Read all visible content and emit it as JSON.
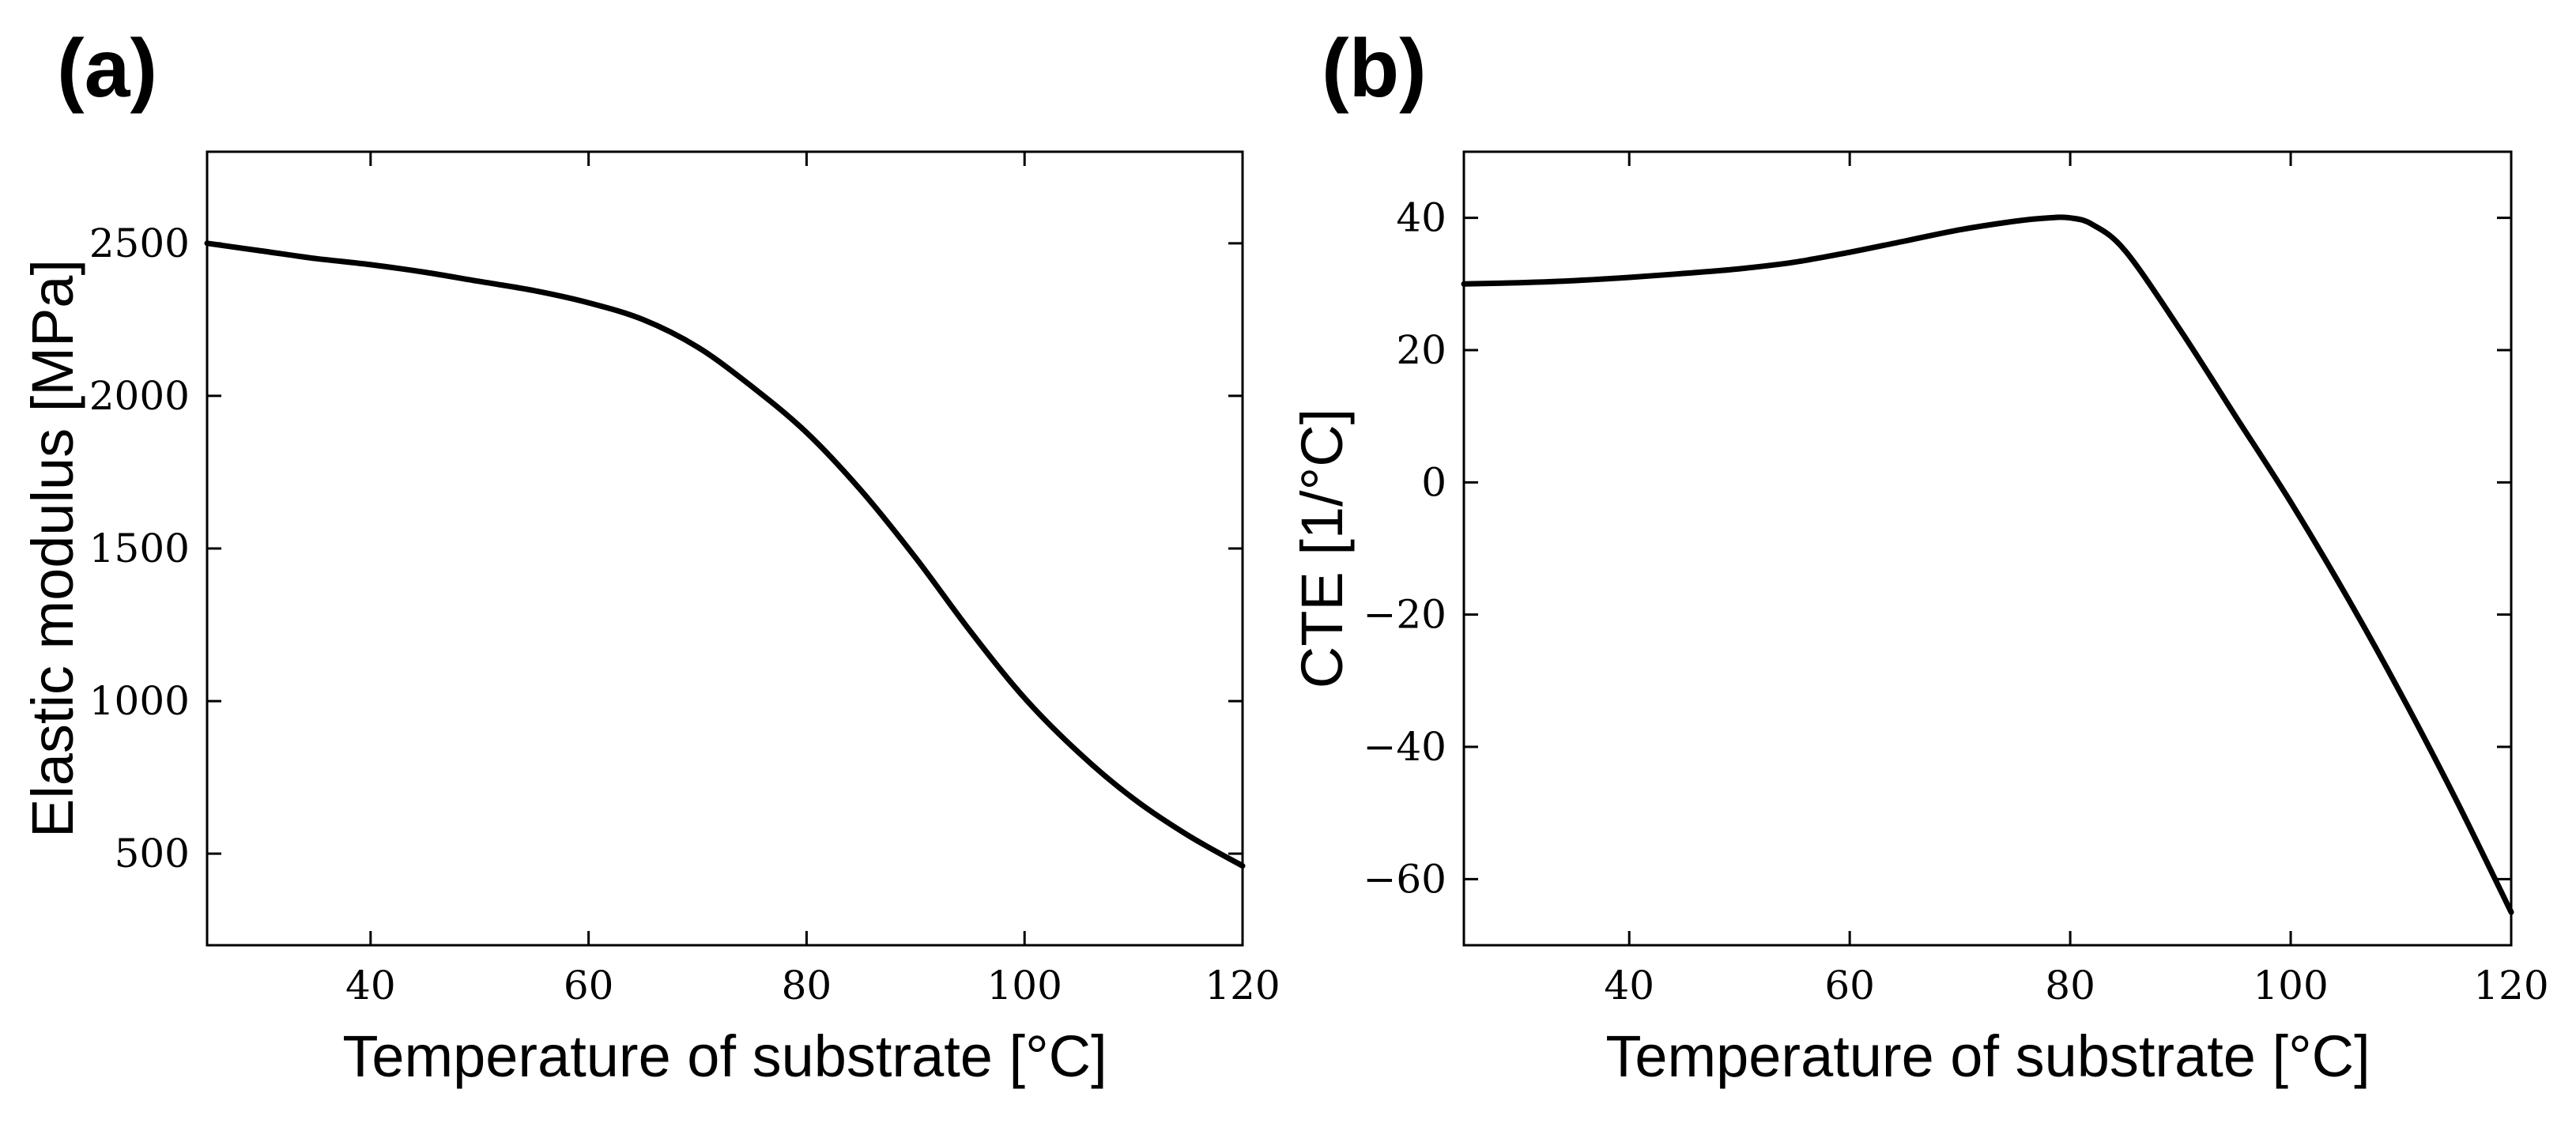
{
  "figure": {
    "panels": [
      {
        "label": "(a)"
      },
      {
        "label": "(b)"
      }
    ]
  },
  "chart_data": [
    {
      "type": "line",
      "panel": "(a)",
      "xlabel": "Temperature of substrate [°C]",
      "ylabel": "Elastic modulus [MPa]",
      "xlim": [
        25,
        120
      ],
      "ylim": [
        200,
        2800
      ],
      "xticks": [
        40,
        60,
        80,
        100,
        120
      ],
      "yticks": [
        500,
        1000,
        1500,
        2000,
        2500
      ],
      "grid": false,
      "series": [
        {
          "name": "Elastic modulus",
          "color": "#000000",
          "x": [
            25,
            30,
            35,
            40,
            45,
            50,
            55,
            60,
            65,
            70,
            75,
            80,
            85,
            90,
            95,
            100,
            105,
            110,
            115,
            120
          ],
          "y": [
            2500,
            2475,
            2450,
            2430,
            2405,
            2375,
            2345,
            2305,
            2250,
            2160,
            2030,
            1880,
            1690,
            1470,
            1230,
            1010,
            830,
            680,
            560,
            460
          ]
        }
      ]
    },
    {
      "type": "line",
      "panel": "(b)",
      "xlabel": "Temperature of substrate [°C]",
      "ylabel": "CTE [1/°C]",
      "xlim": [
        25,
        120
      ],
      "ylim": [
        -70,
        50
      ],
      "xticks": [
        40,
        60,
        80,
        100,
        120
      ],
      "yticks": [
        -60,
        -40,
        -20,
        0,
        20,
        40
      ],
      "ytick_labels": [
        "−60",
        "−40",
        "−20",
        "0",
        "20",
        "40"
      ],
      "grid": false,
      "series": [
        {
          "name": "CTE",
          "color": "#000000",
          "x": [
            25,
            30,
            35,
            40,
            45,
            50,
            55,
            60,
            65,
            70,
            75,
            78,
            80,
            82,
            85,
            90,
            95,
            100,
            105,
            110,
            115,
            120
          ],
          "y": [
            30,
            30.2,
            30.5,
            31,
            31.6,
            32.3,
            33.3,
            34.8,
            36.5,
            38.2,
            39.5,
            40,
            40,
            39,
            35,
            23,
            10,
            -3,
            -17,
            -32,
            -48,
            -65
          ]
        }
      ]
    }
  ]
}
